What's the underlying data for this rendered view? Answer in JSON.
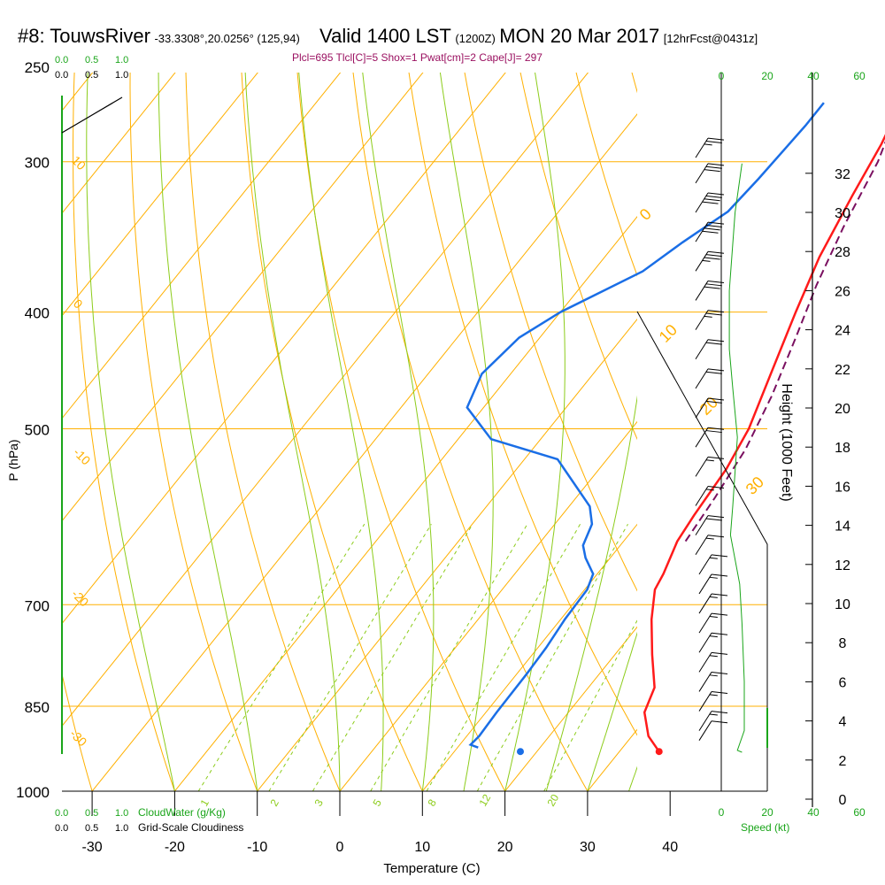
{
  "title": {
    "station": "#8: TouwsRiver",
    "coords": "-33.3308°,20.0256° (125,94)",
    "valid": "Valid 1400 LST",
    "zulu": "(1200Z)",
    "date": "MON 20 Mar 2017",
    "forecast": "[12hrFcst@0431z]"
  },
  "subtitle": "Plcl=695 Tlcl[C]=5 Shox=1 Pwat[cm]=2 Cape[J]= 297",
  "colors": {
    "temp": "#ff1a1a",
    "dew": "#1a6ee6",
    "parcel": "#7a1060",
    "iso": "#ffb000",
    "dryAd": "#ffb000",
    "moistAd": "#8ccc1a",
    "mix": "#8ccc1a",
    "green": "#1aa51a",
    "barb": "#000000"
  },
  "legend": {
    "top_green": [
      "0.0",
      "0.5",
      "1.0"
    ],
    "top_black": [
      "0.0",
      "0.5",
      "1.0"
    ],
    "bottom_green": [
      "0.0",
      "0.5",
      "1.0"
    ],
    "bottom_black": [
      "0.0",
      "0.5",
      "1.0"
    ],
    "cloudwater": "CloudWater (g/Kg)",
    "cloudiness": "Grid-Scale Cloudiness",
    "speed": "Speed (kt)"
  },
  "chart_data": {
    "type": "skew-t",
    "xlabel": "Temperature (C)",
    "ylabel": "P (hPa)",
    "y2label": "Height (1000 Feet)",
    "x_ticks": [
      -30,
      -20,
      -10,
      0,
      10,
      20,
      30,
      40
    ],
    "p_ticks": [
      250,
      300,
      400,
      500,
      700,
      850,
      1000
    ],
    "height_ticks": [
      0,
      2,
      4,
      6,
      8,
      10,
      12,
      14,
      16,
      18,
      20,
      22,
      24,
      26,
      28,
      30,
      32
    ],
    "speed_ticks": [
      0,
      20,
      40,
      60
    ],
    "dry_adiabat_labels": [
      "10",
      "0",
      "-10",
      "-20",
      "-30"
    ],
    "moist_adiabat_labels": [
      "0",
      "10",
      "20",
      "30"
    ],
    "mixing_ratio_labels": [
      "1",
      "2",
      "3",
      "5",
      "8",
      "12",
      "20"
    ],
    "temperature_profile": [
      {
        "p": 927,
        "t": 34.8
      },
      {
        "p": 900,
        "t": 32.0
      },
      {
        "p": 860,
        "t": 29.2
      },
      {
        "p": 820,
        "t": 28.0
      },
      {
        "p": 770,
        "t": 24.5
      },
      {
        "p": 720,
        "t": 21.0
      },
      {
        "p": 680,
        "t": 18.5
      },
      {
        "p": 660,
        "t": 18.0
      },
      {
        "p": 620,
        "t": 16.5
      },
      {
        "p": 590,
        "t": 16.0
      },
      {
        "p": 540,
        "t": 15.4
      },
      {
        "p": 500,
        "t": 14.2
      },
      {
        "p": 450,
        "t": 11.5
      },
      {
        "p": 400,
        "t": 8.5
      },
      {
        "p": 360,
        "t": 6.0
      },
      {
        "p": 320,
        "t": 4.0
      },
      {
        "p": 290,
        "t": 2.5
      },
      {
        "p": 270,
        "t": 1.0
      }
    ],
    "dewpoint_profile": [
      {
        "p": 920,
        "t": 12.5
      },
      {
        "p": 915,
        "t": 11.3
      },
      {
        "p": 900,
        "t": 11.5
      },
      {
        "p": 860,
        "t": 11.3
      },
      {
        "p": 800,
        "t": 11.2
      },
      {
        "p": 760,
        "t": 11.0
      },
      {
        "p": 720,
        "t": 10.5
      },
      {
        "p": 680,
        "t": 10.3
      },
      {
        "p": 660,
        "t": 9.5
      },
      {
        "p": 640,
        "t": 7.0
      },
      {
        "p": 625,
        "t": 5.5
      },
      {
        "p": 600,
        "t": 4.5
      },
      {
        "p": 580,
        "t": 2.5
      },
      {
        "p": 530,
        "t": -6.0
      },
      {
        "p": 510,
        "t": -16.0
      },
      {
        "p": 480,
        "t": -22.0
      },
      {
        "p": 450,
        "t": -23.5
      },
      {
        "p": 420,
        "t": -22.5
      },
      {
        "p": 400,
        "t": -20.0
      },
      {
        "p": 370,
        "t": -14.0
      },
      {
        "p": 350,
        "t": -12.0
      },
      {
        "p": 330,
        "t": -9.5
      },
      {
        "p": 310,
        "t": -9.0
      },
      {
        "p": 280,
        "t": -8.5
      },
      {
        "p": 268,
        "t": -8.5
      }
    ],
    "parcel_profile": [
      {
        "p": 620,
        "t": 17.5
      },
      {
        "p": 570,
        "t": 16.8
      },
      {
        "p": 520,
        "t": 15.8
      },
      {
        "p": 470,
        "t": 13.8
      },
      {
        "p": 420,
        "t": 11.0
      },
      {
        "p": 380,
        "t": 8.4
      },
      {
        "p": 340,
        "t": 6.0
      },
      {
        "p": 300,
        "t": 3.8
      },
      {
        "p": 270,
        "t": 1.0
      }
    ],
    "surface_temp_marker": {
      "p": 927,
      "t": 34.8
    },
    "surface_dew_marker": {
      "p": 927,
      "t": 18.0
    },
    "speed_profile": [
      {
        "h": 32.5,
        "kt": 9
      },
      {
        "h": 30,
        "kt": 6
      },
      {
        "h": 26,
        "kt": 3.5
      },
      {
        "h": 23,
        "kt": 3.5
      },
      {
        "h": 21,
        "kt": 5
      },
      {
        "h": 18.5,
        "kt": 7
      },
      {
        "h": 15,
        "kt": 5
      },
      {
        "h": 13.5,
        "kt": 4
      },
      {
        "h": 11,
        "kt": 8
      },
      {
        "h": 9,
        "kt": 9
      },
      {
        "h": 6,
        "kt": 10
      },
      {
        "h": 5,
        "kt": 10
      },
      {
        "h": 3.5,
        "kt": 10
      },
      {
        "h": 2.5,
        "kt": 7
      },
      {
        "h": 2.4,
        "kt": 9
      }
    ],
    "wind_barbs": [
      {
        "h": 32.8,
        "kt": 25
      },
      {
        "h": 31.5,
        "kt": 30
      },
      {
        "h": 30,
        "kt": 40
      },
      {
        "h": 28.5,
        "kt": 40
      },
      {
        "h": 27,
        "kt": 35
      },
      {
        "h": 25.5,
        "kt": 30
      },
      {
        "h": 24,
        "kt": 25
      },
      {
        "h": 22.5,
        "kt": 20
      },
      {
        "h": 21,
        "kt": 20
      },
      {
        "h": 19.5,
        "kt": 20
      },
      {
        "h": 18,
        "kt": 20
      },
      {
        "h": 16.5,
        "kt": 15
      },
      {
        "h": 15,
        "kt": 15
      },
      {
        "h": 13.5,
        "kt": 20
      },
      {
        "h": 12.5,
        "kt": 15
      },
      {
        "h": 11.5,
        "kt": 15
      },
      {
        "h": 10.5,
        "kt": 15
      },
      {
        "h": 9.5,
        "kt": 15
      },
      {
        "h": 8.5,
        "kt": 15
      },
      {
        "h": 7.5,
        "kt": 15
      },
      {
        "h": 6.5,
        "kt": 15
      },
      {
        "h": 5.5,
        "kt": 15
      },
      {
        "h": 4.5,
        "kt": 15
      },
      {
        "h": 3.5,
        "kt": 15
      },
      {
        "h": 3,
        "kt": 10
      }
    ]
  }
}
